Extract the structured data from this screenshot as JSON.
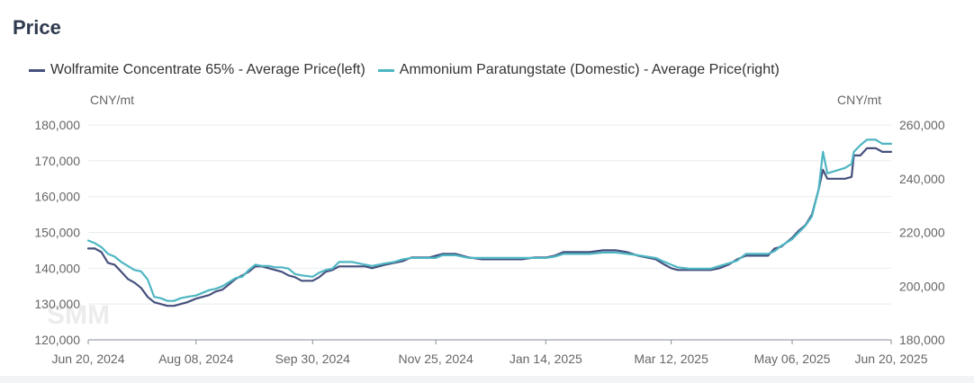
{
  "chart_data": {
    "type": "line",
    "title": "Price",
    "left_unit": "CNY/mt",
    "right_unit": "CNY/mt",
    "x_ticks": [
      "Jun 20, 2024",
      "Aug 08, 2024",
      "Sep 30, 2024",
      "Nov 25, 2024",
      "Jan 14, 2025",
      "Mar 12, 2025",
      "May 06, 2025",
      "Jun 20, 2025"
    ],
    "left_axis": {
      "min": 120000,
      "max": 180000,
      "ticks": [
        120000,
        130000,
        140000,
        150000,
        160000,
        170000,
        180000
      ]
    },
    "right_axis": {
      "min": 180000,
      "max": 260000,
      "ticks": [
        180000,
        200000,
        220000,
        240000,
        260000
      ]
    },
    "grid": true,
    "legend_position": "top-left",
    "watermark": "SMM",
    "series": [
      {
        "name": "Wolframite Concentrate 65% - Average Price(left)",
        "axis": "left",
        "color": "#46507d",
        "points": [
          [
            "2024-06-20",
            145500
          ],
          [
            "2024-06-23",
            145500
          ],
          [
            "2024-06-26",
            144500
          ],
          [
            "2024-06-29",
            141500
          ],
          [
            "2024-07-02",
            141000
          ],
          [
            "2024-07-05",
            139000
          ],
          [
            "2024-07-08",
            137000
          ],
          [
            "2024-07-11",
            136000
          ],
          [
            "2024-07-14",
            134500
          ],
          [
            "2024-07-17",
            132000
          ],
          [
            "2024-07-20",
            130500
          ],
          [
            "2024-07-23",
            130000
          ],
          [
            "2024-07-26",
            129500
          ],
          [
            "2024-07-29",
            129500
          ],
          [
            "2024-08-01",
            130000
          ],
          [
            "2024-08-04",
            130500
          ],
          [
            "2024-08-08",
            131500
          ],
          [
            "2024-08-11",
            132000
          ],
          [
            "2024-08-14",
            132500
          ],
          [
            "2024-08-17",
            133500
          ],
          [
            "2024-08-20",
            134000
          ],
          [
            "2024-08-23",
            135500
          ],
          [
            "2024-08-26",
            137000
          ],
          [
            "2024-08-29",
            138000
          ],
          [
            "2024-09-01",
            139000
          ],
          [
            "2024-09-04",
            140500
          ],
          [
            "2024-09-07",
            140500
          ],
          [
            "2024-09-10",
            140000
          ],
          [
            "2024-09-13",
            139500
          ],
          [
            "2024-09-16",
            139000
          ],
          [
            "2024-09-19",
            138000
          ],
          [
            "2024-09-22",
            137500
          ],
          [
            "2024-09-25",
            136500
          ],
          [
            "2024-09-30",
            136500
          ],
          [
            "2024-10-03",
            137500
          ],
          [
            "2024-10-06",
            139000
          ],
          [
            "2024-10-09",
            139500
          ],
          [
            "2024-10-12",
            140500
          ],
          [
            "2024-10-18",
            140500
          ],
          [
            "2024-10-24",
            140500
          ],
          [
            "2024-10-27",
            140000
          ],
          [
            "2024-10-30",
            140500
          ],
          [
            "2024-11-02",
            141000
          ],
          [
            "2024-11-06",
            141500
          ],
          [
            "2024-11-10",
            142000
          ],
          [
            "2024-11-14",
            143000
          ],
          [
            "2024-11-18",
            143000
          ],
          [
            "2024-11-22",
            143000
          ],
          [
            "2024-11-25",
            143500
          ],
          [
            "2024-11-28",
            144000
          ],
          [
            "2024-12-04",
            144000
          ],
          [
            "2024-12-10",
            143000
          ],
          [
            "2024-12-16",
            142500
          ],
          [
            "2024-12-22",
            142500
          ],
          [
            "2024-12-28",
            142500
          ],
          [
            "2025-01-03",
            142500
          ],
          [
            "2025-01-09",
            143000
          ],
          [
            "2025-01-14",
            143000
          ],
          [
            "2025-01-18",
            143500
          ],
          [
            "2025-01-22",
            144500
          ],
          [
            "2025-01-28",
            144500
          ],
          [
            "2025-02-03",
            144500
          ],
          [
            "2025-02-09",
            145000
          ],
          [
            "2025-02-15",
            145000
          ],
          [
            "2025-02-20",
            144500
          ],
          [
            "2025-02-25",
            143500
          ],
          [
            "2025-03-01",
            143000
          ],
          [
            "2025-03-05",
            142500
          ],
          [
            "2025-03-09",
            141000
          ],
          [
            "2025-03-12",
            140000
          ],
          [
            "2025-03-15",
            139500
          ],
          [
            "2025-03-20",
            139500
          ],
          [
            "2025-03-25",
            139500
          ],
          [
            "2025-03-30",
            139500
          ],
          [
            "2025-04-03",
            140000
          ],
          [
            "2025-04-07",
            141000
          ],
          [
            "2025-04-11",
            142500
          ],
          [
            "2025-04-15",
            143500
          ],
          [
            "2025-04-20",
            143500
          ],
          [
            "2025-04-25",
            143500
          ],
          [
            "2025-04-28",
            145500
          ],
          [
            "2025-05-01",
            146000
          ],
          [
            "2025-05-04",
            147500
          ],
          [
            "2025-05-06",
            148500
          ],
          [
            "2025-05-09",
            150500
          ],
          [
            "2025-05-12",
            152000
          ],
          [
            "2025-05-15",
            155000
          ],
          [
            "2025-05-18",
            162000
          ],
          [
            "2025-05-20",
            167500
          ],
          [
            "2025-05-22",
            165000
          ],
          [
            "2025-05-26",
            165000
          ],
          [
            "2025-05-30",
            165000
          ],
          [
            "2025-06-02",
            165500
          ],
          [
            "2025-06-03",
            171500
          ],
          [
            "2025-06-06",
            171500
          ],
          [
            "2025-06-09",
            173500
          ],
          [
            "2025-06-13",
            173500
          ],
          [
            "2025-06-16",
            172500
          ],
          [
            "2025-06-20",
            172500
          ]
        ]
      },
      {
        "name": "Ammonium Paratungstate (Domestic) - Average Price(right)",
        "axis": "right",
        "color": "#4db6c2",
        "points": [
          [
            "2024-06-20",
            217000
          ],
          [
            "2024-06-23",
            216000
          ],
          [
            "2024-06-26",
            214500
          ],
          [
            "2024-06-29",
            212000
          ],
          [
            "2024-07-02",
            211000
          ],
          [
            "2024-07-05",
            209000
          ],
          [
            "2024-07-08",
            207500
          ],
          [
            "2024-07-11",
            206000
          ],
          [
            "2024-07-14",
            205500
          ],
          [
            "2024-07-17",
            202500
          ],
          [
            "2024-07-20",
            196000
          ],
          [
            "2024-07-23",
            195500
          ],
          [
            "2024-07-26",
            194500
          ],
          [
            "2024-07-29",
            194500
          ],
          [
            "2024-08-01",
            195500
          ],
          [
            "2024-08-04",
            196000
          ],
          [
            "2024-08-08",
            196500
          ],
          [
            "2024-08-11",
            197500
          ],
          [
            "2024-08-14",
            198500
          ],
          [
            "2024-08-17",
            199000
          ],
          [
            "2024-08-20",
            200000
          ],
          [
            "2024-08-23",
            201500
          ],
          [
            "2024-08-26",
            203000
          ],
          [
            "2024-08-29",
            203500
          ],
          [
            "2024-09-01",
            206000
          ],
          [
            "2024-09-04",
            208000
          ],
          [
            "2024-09-07",
            207500
          ],
          [
            "2024-09-10",
            207500
          ],
          [
            "2024-09-13",
            207000
          ],
          [
            "2024-09-16",
            207000
          ],
          [
            "2024-09-19",
            206500
          ],
          [
            "2024-09-22",
            204500
          ],
          [
            "2024-09-25",
            204000
          ],
          [
            "2024-09-30",
            203500
          ],
          [
            "2024-10-03",
            205000
          ],
          [
            "2024-10-06",
            206000
          ],
          [
            "2024-10-09",
            206500
          ],
          [
            "2024-10-12",
            209000
          ],
          [
            "2024-10-18",
            209000
          ],
          [
            "2024-10-24",
            208000
          ],
          [
            "2024-10-27",
            207500
          ],
          [
            "2024-10-30",
            208000
          ],
          [
            "2024-11-02",
            208500
          ],
          [
            "2024-11-06",
            209000
          ],
          [
            "2024-11-10",
            210000
          ],
          [
            "2024-11-14",
            210500
          ],
          [
            "2024-11-18",
            210500
          ],
          [
            "2024-11-22",
            210500
          ],
          [
            "2024-11-25",
            210500
          ],
          [
            "2024-11-28",
            211500
          ],
          [
            "2024-12-04",
            211500
          ],
          [
            "2024-12-10",
            210500
          ],
          [
            "2024-12-16",
            210500
          ],
          [
            "2024-12-22",
            210500
          ],
          [
            "2024-12-28",
            210500
          ],
          [
            "2025-01-03",
            210500
          ],
          [
            "2025-01-09",
            210500
          ],
          [
            "2025-01-14",
            210500
          ],
          [
            "2025-01-18",
            211000
          ],
          [
            "2025-01-22",
            212000
          ],
          [
            "2025-01-28",
            212000
          ],
          [
            "2025-02-03",
            212000
          ],
          [
            "2025-02-09",
            212500
          ],
          [
            "2025-02-15",
            212500
          ],
          [
            "2025-02-20",
            212000
          ],
          [
            "2025-02-25",
            211500
          ],
          [
            "2025-03-01",
            211000
          ],
          [
            "2025-03-05",
            210500
          ],
          [
            "2025-03-09",
            209000
          ],
          [
            "2025-03-12",
            208000
          ],
          [
            "2025-03-15",
            207000
          ],
          [
            "2025-03-20",
            206500
          ],
          [
            "2025-03-25",
            206500
          ],
          [
            "2025-03-30",
            206500
          ],
          [
            "2025-04-03",
            207500
          ],
          [
            "2025-04-07",
            208500
          ],
          [
            "2025-04-11",
            209500
          ],
          [
            "2025-04-15",
            212000
          ],
          [
            "2025-04-20",
            212000
          ],
          [
            "2025-04-25",
            212000
          ],
          [
            "2025-04-28",
            213000
          ],
          [
            "2025-05-01",
            215000
          ],
          [
            "2025-05-04",
            216500
          ],
          [
            "2025-05-06",
            217500
          ],
          [
            "2025-05-09",
            220000
          ],
          [
            "2025-05-12",
            222500
          ],
          [
            "2025-05-15",
            226000
          ],
          [
            "2025-05-18",
            236000
          ],
          [
            "2025-05-20",
            250000
          ],
          [
            "2025-05-22",
            242000
          ],
          [
            "2025-05-26",
            243000
          ],
          [
            "2025-05-30",
            244000
          ],
          [
            "2025-06-02",
            245500
          ],
          [
            "2025-06-03",
            250000
          ],
          [
            "2025-06-06",
            252500
          ],
          [
            "2025-06-09",
            254500
          ],
          [
            "2025-06-13",
            254500
          ],
          [
            "2025-06-16",
            253000
          ],
          [
            "2025-06-20",
            253000
          ]
        ]
      }
    ]
  }
}
